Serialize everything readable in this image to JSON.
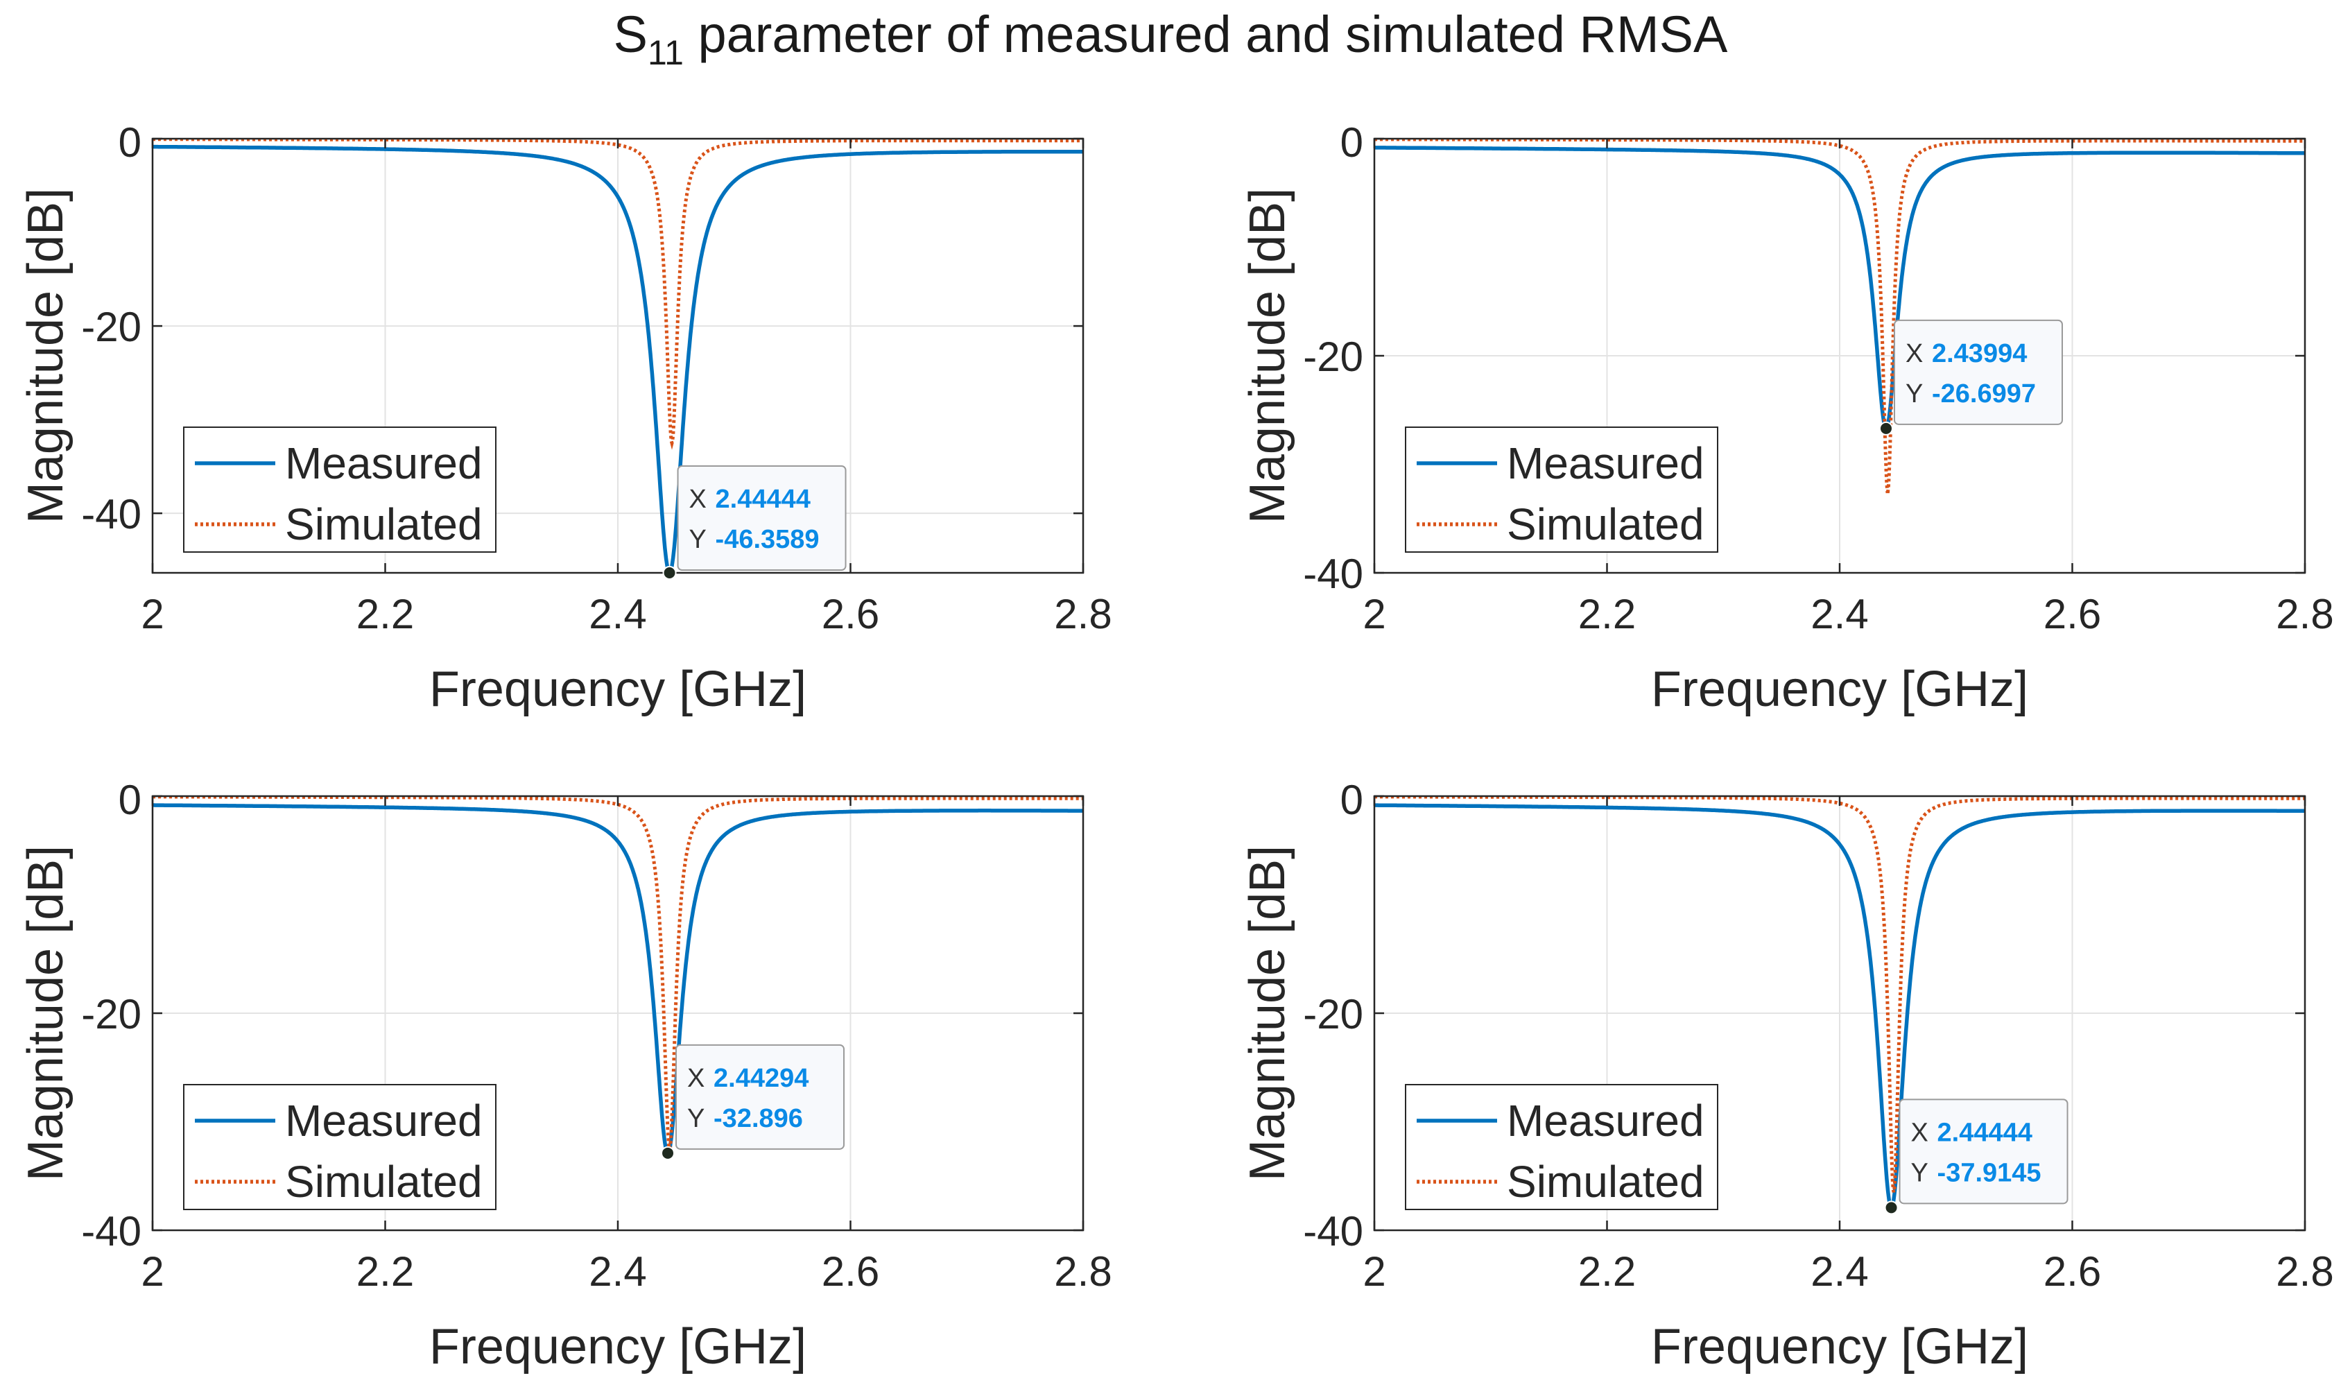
{
  "figure": {
    "title_main": "S",
    "title_sub": "11",
    "title_rest": " parameter of measured and simulated RMSA"
  },
  "colors": {
    "measured": "#0072BD",
    "simulated": "#D95319",
    "grid": "#e3e3e3",
    "axes": "#262626",
    "datatip_value": "#0a8ae6"
  },
  "chart_data": [
    {
      "type": "line",
      "xlabel": "Frequency [GHz]",
      "ylabel": "Magnitude [dB]",
      "xlim": [
        2,
        2.8
      ],
      "ylim": [
        -46.3589,
        0
      ],
      "xticks": [
        "2",
        "2.2",
        "2.4",
        "2.6",
        "2.8"
      ],
      "yticks": [
        "0",
        "-20",
        "-40"
      ],
      "ytick_values": [
        0,
        -20,
        -40
      ],
      "grid": true,
      "legend": {
        "position": "bottom-left",
        "entries": [
          "Measured",
          "Simulated"
        ]
      },
      "series": [
        {
          "name": "Measured",
          "style": "solid",
          "f0": 2.44444,
          "min": -46.3589,
          "base_lo": -0.8,
          "base_hi": -1.3,
          "width": 0.045
        },
        {
          "name": "Simulated",
          "style": "dotted",
          "f0": 2.4465,
          "min": -32.5,
          "base_lo": -0.05,
          "base_hi": -0.2,
          "width": 0.017
        }
      ],
      "datatip": {
        "x": "2.44444",
        "y": "-46.3589",
        "xv": 2.44444,
        "yv": -46.3589,
        "side": "right"
      }
    },
    {
      "type": "line",
      "xlabel": "Frequency [GHz]",
      "ylabel": "Magnitude [dB]",
      "xlim": [
        2,
        2.8
      ],
      "ylim": [
        -40,
        0
      ],
      "xticks": [
        "2",
        "2.2",
        "2.4",
        "2.6",
        "2.8"
      ],
      "yticks": [
        "0",
        "-20",
        "-40"
      ],
      "ytick_values": [
        0,
        -20,
        -40
      ],
      "grid": true,
      "legend": {
        "position": "bottom-left",
        "entries": [
          "Measured",
          "Simulated"
        ]
      },
      "series": [
        {
          "name": "Measured",
          "style": "solid",
          "f0": 2.43994,
          "min": -26.6997,
          "base_lo": -0.8,
          "base_hi": -1.3,
          "width": 0.035
        },
        {
          "name": "Simulated",
          "style": "dotted",
          "f0": 2.4413,
          "min": -32.5,
          "base_lo": -0.05,
          "base_hi": -0.2,
          "width": 0.015
        }
      ],
      "datatip": {
        "x": "2.43994",
        "y": "-26.6997",
        "xv": 2.43994,
        "yv": -26.6997,
        "side": "up-right"
      }
    },
    {
      "type": "line",
      "xlabel": "Frequency [GHz]",
      "ylabel": "Magnitude [dB]",
      "xlim": [
        2,
        2.8
      ],
      "ylim": [
        -40,
        0
      ],
      "xticks": [
        "2",
        "2.2",
        "2.4",
        "2.6",
        "2.8"
      ],
      "yticks": [
        "0",
        "-20",
        "-40"
      ],
      "ytick_values": [
        0,
        -20,
        -40
      ],
      "grid": true,
      "legend": {
        "position": "bottom-left",
        "entries": [
          "Measured",
          "Simulated"
        ]
      },
      "series": [
        {
          "name": "Measured",
          "style": "solid",
          "f0": 2.44294,
          "min": -32.896,
          "base_lo": -0.8,
          "base_hi": -1.3,
          "width": 0.04
        },
        {
          "name": "Simulated",
          "style": "dotted",
          "f0": 2.4445,
          "min": -32.5,
          "base_lo": -0.05,
          "base_hi": -0.2,
          "width": 0.018
        }
      ],
      "datatip": {
        "x": "2.44294",
        "y": "-32.896",
        "xv": 2.44294,
        "yv": -32.896,
        "side": "up-right"
      }
    },
    {
      "type": "line",
      "xlabel": "Frequency [GHz]",
      "ylabel": "Magnitude [dB]",
      "xlim": [
        2,
        2.8
      ],
      "ylim": [
        -40,
        0
      ],
      "xticks": [
        "2",
        "2.2",
        "2.4",
        "2.6",
        "2.8"
      ],
      "yticks": [
        "0",
        "-20",
        "-40"
      ],
      "ytick_values": [
        0,
        -20,
        -40
      ],
      "grid": true,
      "legend": {
        "position": "bottom-left",
        "entries": [
          "Measured",
          "Simulated"
        ]
      },
      "series": [
        {
          "name": "Measured",
          "style": "solid",
          "f0": 2.44444,
          "min": -37.9145,
          "base_lo": -0.8,
          "base_hi": -1.3,
          "width": 0.04
        },
        {
          "name": "Simulated",
          "style": "dotted",
          "f0": 2.4465,
          "min": -36.5,
          "base_lo": -0.05,
          "base_hi": -0.2,
          "width": 0.016
        }
      ],
      "datatip": {
        "x": "2.44444",
        "y": "-37.9145",
        "xv": 2.44444,
        "yv": -37.9145,
        "side": "up-right"
      }
    }
  ]
}
